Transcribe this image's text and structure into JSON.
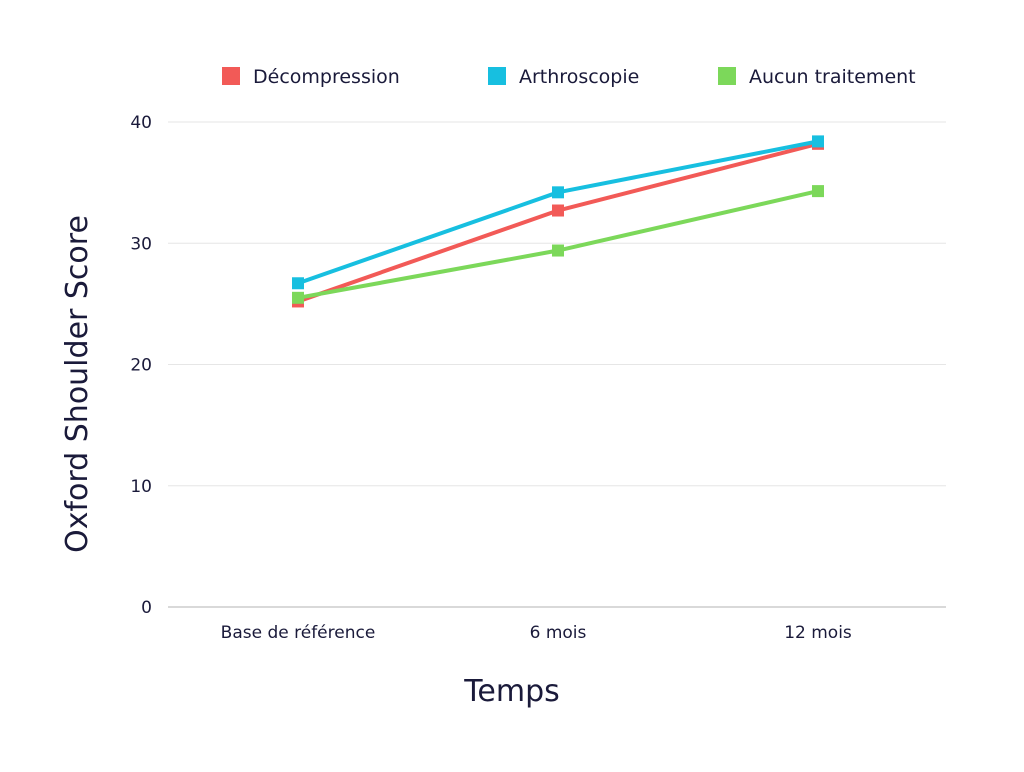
{
  "chart_data": {
    "type": "line",
    "title": "",
    "xlabel": "Temps",
    "ylabel": "Oxford Shoulder Score",
    "categories": [
      "Base de référence",
      "6 mois",
      "12 mois"
    ],
    "ylim": [
      0,
      40
    ],
    "yticks": [
      0,
      10,
      20,
      30,
      40
    ],
    "grid": true,
    "legend_position": "top",
    "series": [
      {
        "name": "Décompression",
        "color": "#f25a57",
        "values": [
          25.2,
          32.7,
          38.2
        ]
      },
      {
        "name": "Arthroscopie",
        "color": "#17bfe0",
        "values": [
          26.7,
          34.2,
          38.4
        ]
      },
      {
        "name": "Aucun traitement",
        "color": "#7cd85a",
        "values": [
          25.5,
          29.4,
          34.3
        ]
      }
    ]
  }
}
